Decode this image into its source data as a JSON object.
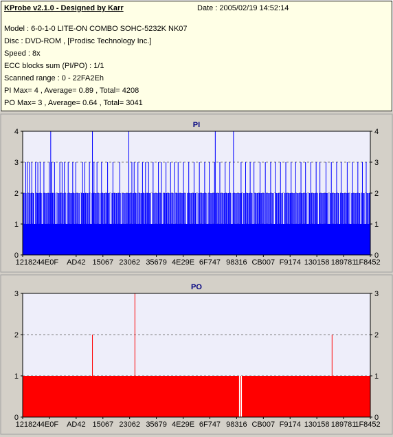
{
  "info": {
    "header": "KProbe v2.1.0 - Designed by Karr",
    "date": "Date : 2005/02/19 14:52:14",
    "lines": [
      "Model : 6-0-1-0 LITE-ON COMBO SOHC-5232K NK07",
      "Disc : DVD-ROM ,  [Prodisc Technology Inc.]",
      "Speed : 8x",
      "ECC blocks sum (PI/PO) : 1/1",
      "Scanned range : 0 - 22FA2Eh",
      "PI Max= 4 , Average= 0.89 , Total= 4208",
      "PO Max= 3 , Average= 0.64 , Total= 3041"
    ]
  },
  "colors": {
    "pi_fill": "#0000ff",
    "po_fill": "#ff0000",
    "plot_bg": "#eeeefa",
    "grid": "#808080"
  },
  "chart_data": [
    {
      "type": "bar",
      "title": "PI",
      "ylim": [
        0,
        4
      ],
      "yticks": [
        "0",
        "1",
        "2",
        "3",
        "4"
      ],
      "x_tick_labels": [
        "121824",
        "4E0F",
        "AD42",
        "15067",
        "23062",
        "35679",
        "4E29E",
        "6F747",
        "98316",
        "CB007",
        "F9174",
        "130158",
        "189781",
        "1F8452"
      ],
      "xlim": [
        0,
        2292270
      ],
      "base_level": 1,
      "band_level": 2,
      "band_ranges": [
        [
          0,
          2292270
        ]
      ],
      "spikes_3": [
        20000,
        30000,
        45000,
        60000,
        85000,
        100000,
        115000,
        140000,
        175000,
        190000,
        210000,
        245000,
        260000,
        275000,
        300000,
        330000,
        350000,
        395000,
        410000,
        440000,
        470000,
        490000,
        520000,
        560000,
        595000,
        640000,
        700000,
        720000,
        735000,
        760000,
        790000,
        810000,
        830000,
        860000,
        895000,
        915000,
        945000,
        975000,
        1000000,
        1025000,
        1060000,
        1095000,
        1130000,
        1165000,
        1200000,
        1230000,
        1265000,
        1300000,
        1335000,
        1365000,
        1440000,
        1470000,
        1500000,
        1525000,
        1565000,
        1600000,
        1635000,
        1665000,
        1700000,
        1735000,
        1770000,
        1800000,
        1835000,
        1865000,
        1900000,
        1935000,
        1960000,
        2000000,
        2035000,
        2070000,
        2100000,
        2140000,
        2175000,
        2210000,
        2240000,
        2265000
      ],
      "spikes_4": [
        185000,
        460000,
        700000,
        1270000,
        1390000
      ],
      "dips_1": [
        30000,
        80000,
        130000,
        220000,
        290000,
        380000,
        450000,
        510000,
        580000,
        650000,
        760000,
        850000,
        920000,
        1000000,
        1080000,
        1150000,
        1220000,
        1300000,
        1380000,
        1450000,
        1520000,
        1600000,
        1660000,
        1720000,
        1800000,
        1880000,
        1950000,
        2020000,
        2090000,
        2160000,
        2230000,
        2260000
      ]
    },
    {
      "type": "bar",
      "title": "PO",
      "ylim": [
        0,
        3
      ],
      "yticks": [
        "0",
        "1",
        "2",
        "3"
      ],
      "x_tick_labels": [
        "121824",
        "4E0F",
        "AD42",
        "15067",
        "23062",
        "35679",
        "4E29E",
        "6F747",
        "98316",
        "CB007",
        "F9174",
        "130158",
        "189781",
        "1F8452"
      ],
      "xlim": [
        0,
        2292270
      ],
      "base_level": 1,
      "spikes_2": [
        460000,
        2040000
      ],
      "spikes_3": [
        740000
      ],
      "gaps": [
        1430000,
        1442000
      ]
    }
  ]
}
